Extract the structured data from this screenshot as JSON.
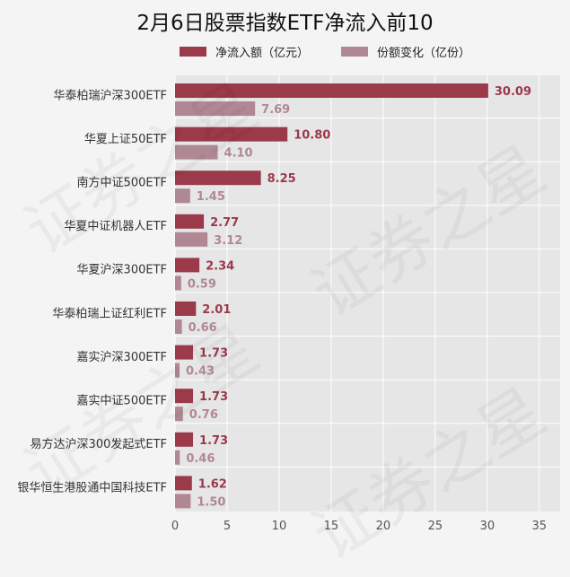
{
  "title": "2月6日股票指数ETF净流入前10",
  "watermark": "证券之星",
  "colors": {
    "inflow": "#9a3a4b",
    "share": "#b08893",
    "plot_bg": "#e6e6e6"
  },
  "chart_data": {
    "type": "bar",
    "orientation": "horizontal",
    "title": "2月6日股票指数ETF净流入前10",
    "categories": [
      "华泰柏瑞沪深300ETF",
      "华夏上证50ETF",
      "南方中证500ETF",
      "华夏中证机器人ETF",
      "华夏沪深300ETF",
      "华泰柏瑞上证红利ETF",
      "嘉实沪深300ETF",
      "嘉实中证500ETF",
      "易方达沪深300发起式ETF",
      "银华恒生港股通中国科技ETF"
    ],
    "series": [
      {
        "name": "净流入额（亿元）",
        "values": [
          30.09,
          10.8,
          8.25,
          2.77,
          2.34,
          2.01,
          1.73,
          1.73,
          1.73,
          1.62
        ],
        "labels": [
          "30.09",
          "10.80",
          "8.25",
          "2.77",
          "2.34",
          "2.01",
          "1.73",
          "1.73",
          "1.73",
          "1.62"
        ]
      },
      {
        "name": "份额变化（亿份）",
        "values": [
          7.69,
          4.1,
          1.45,
          3.12,
          0.59,
          0.66,
          0.43,
          0.76,
          0.46,
          1.5
        ],
        "labels": [
          "7.69",
          "4.10",
          "1.45",
          "3.12",
          "0.59",
          "0.66",
          "0.43",
          "0.76",
          "0.46",
          "1.50"
        ]
      }
    ],
    "xlim": [
      0,
      37
    ],
    "xticks": [
      "0",
      "5",
      "10",
      "15",
      "20",
      "25",
      "30",
      "35"
    ],
    "xtick_values": [
      0,
      5,
      10,
      15,
      20,
      25,
      30,
      35
    ],
    "grid": true,
    "legend": "top"
  }
}
